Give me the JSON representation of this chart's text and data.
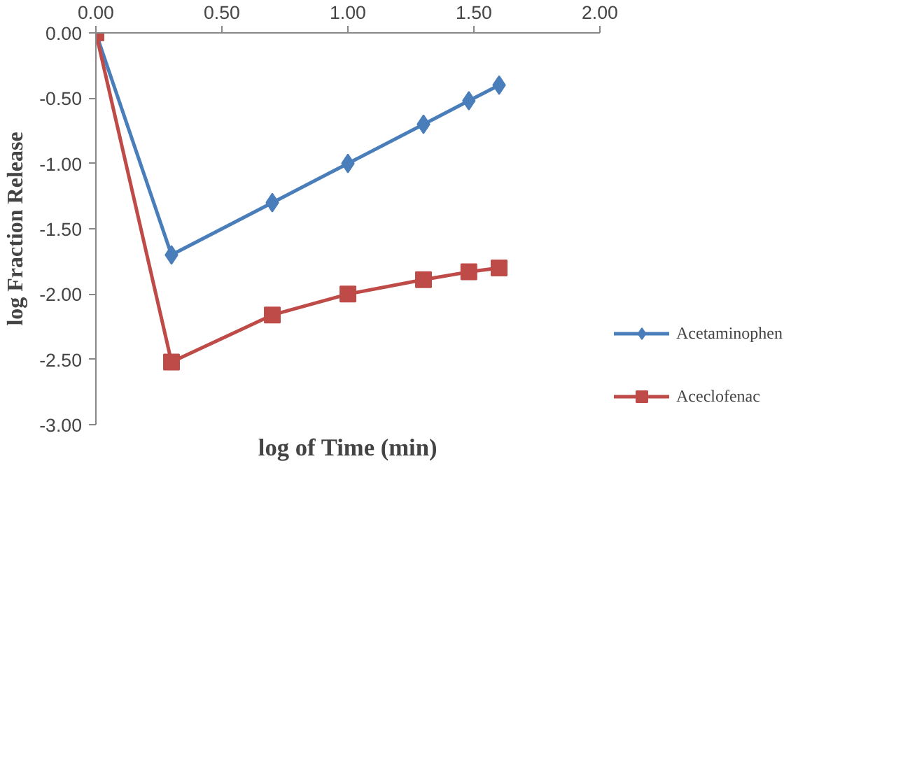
{
  "chart_data": {
    "type": "line",
    "xlabel": "log of Time (min)",
    "ylabel": "log Fraction Release",
    "x": [
      0,
      0.3,
      0.7,
      1.0,
      1.3,
      1.48,
      1.6
    ],
    "series": [
      {
        "name": "Acetaminophen",
        "color": "#4a7ebb",
        "marker": "diamond",
        "values": [
          0,
          -1.7,
          -1.3,
          -1.0,
          -0.7,
          -0.52,
          -0.4
        ]
      },
      {
        "name": "Aceclofenac",
        "color": "#be4b48",
        "marker": "square",
        "values": [
          0,
          -2.52,
          -2.16,
          -2.0,
          -1.89,
          -1.83,
          -1.8
        ]
      }
    ],
    "xlim": [
      0,
      2
    ],
    "ylim": [
      -3,
      0
    ],
    "xticks": [
      {
        "value": 0,
        "label": "0.00"
      },
      {
        "value": 0.5,
        "label": "0.50"
      },
      {
        "value": 1,
        "label": "1.00"
      },
      {
        "value": 1.5,
        "label": "1.50"
      },
      {
        "value": 2,
        "label": "2.00"
      }
    ],
    "yticks": [
      {
        "value": 0,
        "label": "0.00"
      },
      {
        "value": -0.5,
        "label": "-0.50"
      },
      {
        "value": -1,
        "label": "-1.00"
      },
      {
        "value": -1.5,
        "label": "-1.50"
      },
      {
        "value": -2,
        "label": "-2.00"
      },
      {
        "value": -2.5,
        "label": "-2.50"
      },
      {
        "value": -3,
        "label": "-3.00"
      }
    ],
    "grid": false,
    "legend": "bottom right"
  }
}
